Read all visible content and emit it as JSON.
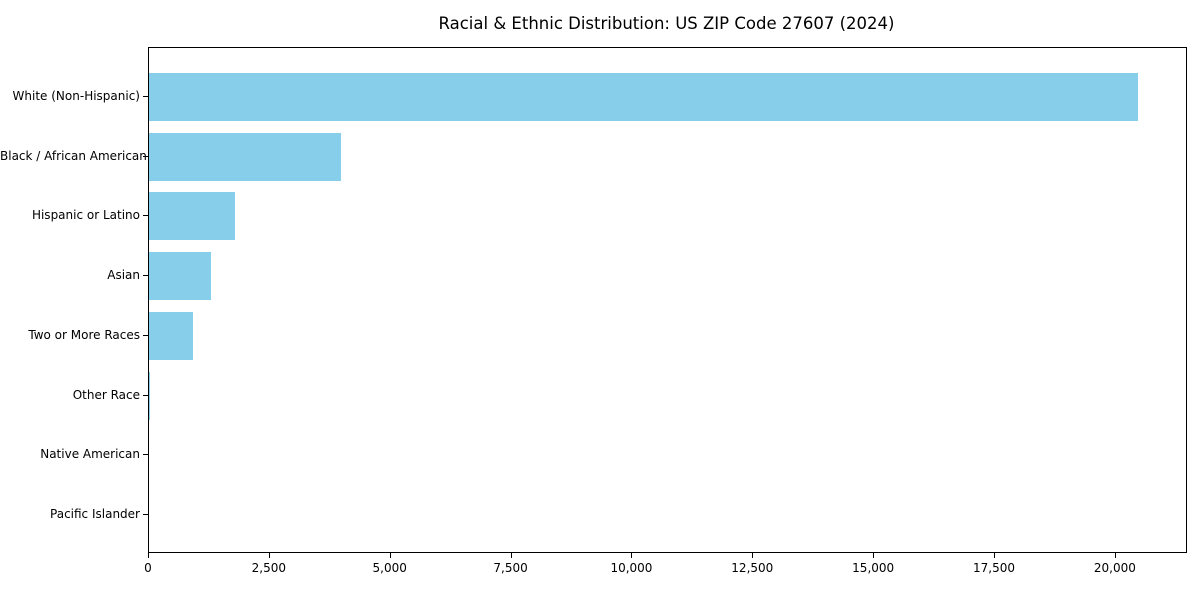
{
  "figure": {
    "background": "#ffffff",
    "text_color": "#000000",
    "spine_color": "#000000"
  },
  "chart_data": {
    "type": "bar",
    "orientation": "horizontal",
    "title": "Racial & Ethnic Distribution: US ZIP Code 27607 (2024)",
    "categories": [
      "White (Non-Hispanic)",
      "Black / African American",
      "Hispanic or Latino",
      "Asian",
      "Two or More Races",
      "Other Race",
      "Native American",
      "Pacific Islander"
    ],
    "values": [
      20450,
      3970,
      1780,
      1280,
      915,
      20,
      0,
      0
    ],
    "xlabel": "",
    "ylabel": "",
    "xlim": [
      0,
      21450
    ],
    "xticks": [
      0,
      2500,
      5000,
      7500,
      10000,
      12500,
      15000,
      17500,
      20000
    ],
    "xtick_labels": [
      "0",
      "2,500",
      "5,000",
      "7,500",
      "10,000",
      "12,500",
      "15,000",
      "17,500",
      "20,000"
    ],
    "bar_color": "#87CEEB",
    "grid": false,
    "legend": null,
    "frame": true
  }
}
